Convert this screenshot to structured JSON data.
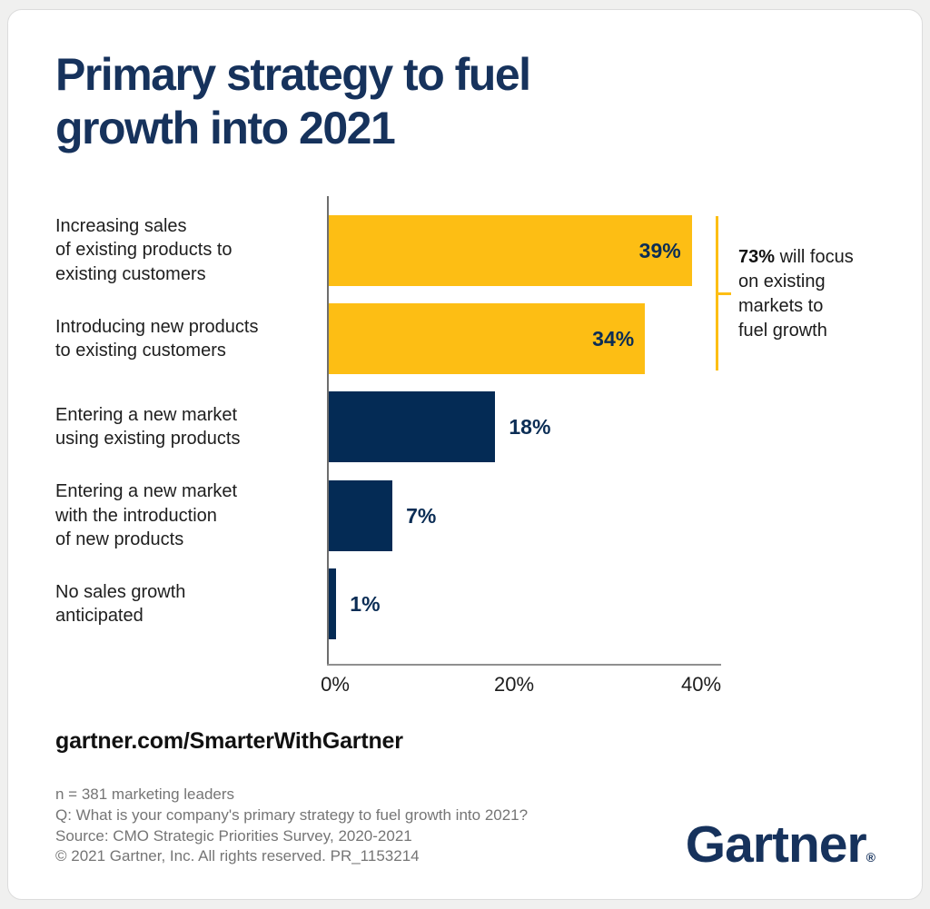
{
  "page": {
    "background_color": "#f0f0ef",
    "card_background": "#ffffff"
  },
  "title": "Primary strategy to fuel\ngrowth into 2021",
  "title_color": "#16325c",
  "chart_data": {
    "type": "bar",
    "orientation": "horizontal",
    "categories": [
      "Increasing sales\nof existing products to\nexisting customers",
      "Introducing new products\nto existing customers",
      "Entering a new market\nusing existing products",
      "Entering a new market\nwith the introduction\nof new products",
      "No sales growth\nanticipated"
    ],
    "values": [
      39,
      34,
      18,
      7,
      1
    ],
    "value_labels": [
      "39%",
      "34%",
      "18%",
      "7%",
      "1%"
    ],
    "bar_colors": [
      "#fdbe14",
      "#fdbe14",
      "#042b55",
      "#042b55",
      "#042b55"
    ],
    "label_inside": [
      true,
      true,
      false,
      false,
      false
    ],
    "value_label_color": "#0b2d55",
    "xlim": [
      0,
      40
    ],
    "x_ticks": [
      {
        "label": "0%",
        "value": 0
      },
      {
        "label": "20%",
        "value": 20
      },
      {
        "label": "40%",
        "value": 40
      }
    ],
    "grid": false,
    "annotation": {
      "value": "73%",
      "text": "will focus\non existing\nmarkets to\nfuel growth",
      "bracket_color": "#fdbe14"
    }
  },
  "footer": {
    "site": "gartner.com/SmarterWithGartner",
    "notes": [
      "n = 381 marketing leaders",
      "Q: What is your company's primary strategy to fuel growth into 2021?",
      "Source: CMO Strategic Priorities Survey, 2020-2021",
      "© 2021 Gartner, Inc. All rights reserved. PR_1153214"
    ],
    "logo_text": "Gartner",
    "logo_reg": "®"
  }
}
